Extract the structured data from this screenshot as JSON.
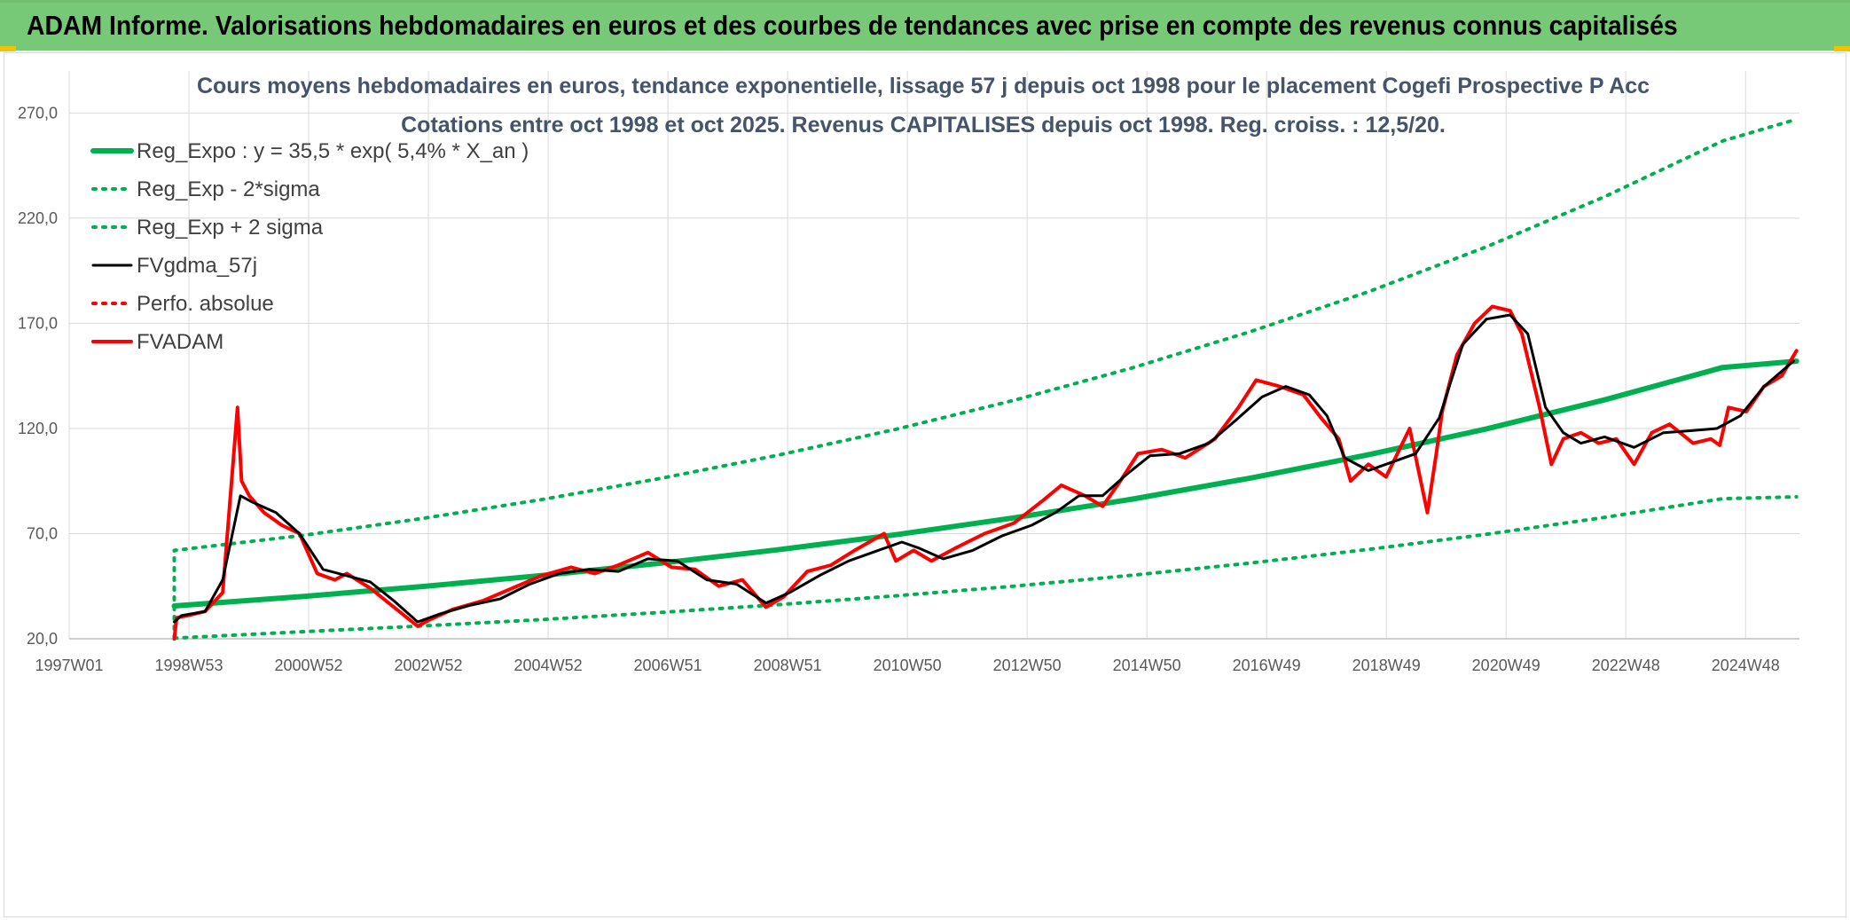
{
  "header": {
    "title": "ADAM Informe. Valorisations hebdomadaires en euros et des courbes de tendances avec prise en compte des revenus connus capitalisés"
  },
  "colors": {
    "header_bg": "#77c877",
    "reg_expo": "#00b050",
    "fvgdma": "#000000",
    "fvadam": "#ff0000",
    "grid": "#d9d9d9"
  },
  "chart_data": {
    "type": "line",
    "title": [
      "Cours moyens hebdomadaires en euros, tendance exponentielle, lissage 57 j depuis oct 1998 pour le placement Cogefi Prospective P Acc",
      "Cotations entre oct 1998 et oct 2025. Revenus CAPITALISES depuis oct 1998. Reg. croiss. : 12,5/20."
    ],
    "x_tick_labels": [
      "1997W01",
      "1998W53",
      "2000W52",
      "2002W52",
      "2004W52",
      "2006W51",
      "2008W51",
      "2010W50",
      "2012W50",
      "2014W50",
      "2016W49",
      "2018W49",
      "2020W49",
      "2022W48",
      "2024W48"
    ],
    "x_range": [
      1997.0,
      2026.3
    ],
    "ylim": [
      20,
      290
    ],
    "y_ticks": [
      20,
      70,
      120,
      170,
      220,
      270
    ],
    "y_tick_labels": [
      "20,0",
      "70,0",
      "120,0",
      "170,0",
      "220,0",
      "270,0"
    ],
    "grid": true,
    "legend_position": "top-left",
    "series": [
      {
        "name": "Reg_Expo : y = 35,5 * exp( 5,4% *  X_an )",
        "style": "solid-thick",
        "color": "#00b050",
        "x": [
          1998.78,
          2001,
          2003,
          2005,
          2007,
          2009,
          2011,
          2013,
          2015,
          2017,
          2019,
          2021,
          2023,
          2025,
          2026.25
        ],
        "y": [
          35.6,
          40.2,
          44.9,
          50.1,
          55.9,
          62.3,
          69.5,
          77.5,
          86.4,
          96.4,
          107.5,
          119.8,
          133.6,
          149.0,
          152.0
        ]
      },
      {
        "name": "Reg_Exp - 2*sigma",
        "style": "dotted",
        "color": "#00b050",
        "x": [
          1998.78,
          2001,
          2003,
          2005,
          2007,
          2009,
          2011,
          2013,
          2015,
          2017,
          2019,
          2021,
          2023,
          2025,
          2026.25
        ],
        "y": [
          20.3,
          23.4,
          26.1,
          29.1,
          32.5,
          36.2,
          40.4,
          45.0,
          50.2,
          56.0,
          62.5,
          69.7,
          77.7,
          86.6,
          87.5
        ]
      },
      {
        "name": "Reg_Exp + 2 sigma",
        "style": "dotted",
        "color": "#00b050",
        "x": [
          1998.78,
          2001,
          2003,
          2005,
          2007,
          2009,
          2011,
          2013,
          2015,
          2017,
          2019,
          2021,
          2023,
          2025,
          2026.25
        ],
        "y": [
          62.0,
          69.3,
          77.3,
          86.2,
          96.2,
          107.3,
          119.6,
          133.4,
          148.8,
          166.0,
          185.0,
          206.4,
          230.2,
          256.7,
          267.0
        ]
      },
      {
        "name": "FVgdma_57j",
        "style": "solid",
        "color": "#000000",
        "x": [
          1998.78,
          1998.9,
          1999.3,
          1999.6,
          1999.9,
          2000.1,
          2000.5,
          2000.9,
          2001.3,
          2001.7,
          2002.1,
          2002.5,
          2002.9,
          2003.3,
          2003.8,
          2004.3,
          2004.8,
          2005.3,
          2005.8,
          2006.3,
          2006.8,
          2007.3,
          2007.8,
          2008.3,
          2008.8,
          2009.2,
          2009.7,
          2010.2,
          2010.7,
          2011.1,
          2011.4,
          2011.8,
          2012.3,
          2012.8,
          2013.3,
          2013.7,
          2014.1,
          2014.5,
          2014.9,
          2015.3,
          2015.8,
          2016.3,
          2016.8,
          2017.2,
          2017.6,
          2018.0,
          2018.3,
          2018.6,
          2019.0,
          2019.4,
          2019.8,
          2020.2,
          2020.6,
          2021.0,
          2021.4,
          2021.7,
          2022.0,
          2022.3,
          2022.6,
          2023.0,
          2023.5,
          2024.0,
          2024.5,
          2024.9,
          2025.3,
          2025.7,
          2026.2
        ],
        "y": [
          28,
          31,
          33,
          48,
          88,
          85,
          80,
          70,
          53,
          50,
          47,
          38,
          28,
          32,
          36,
          39,
          46,
          51,
          53,
          52,
          58,
          57,
          48,
          46,
          37,
          42,
          50,
          57,
          62,
          66,
          63,
          58,
          62,
          69,
          74,
          80,
          88,
          88,
          98,
          107,
          108,
          113,
          125,
          135,
          140,
          136,
          126,
          106,
          100,
          104,
          108,
          125,
          160,
          172,
          174,
          165,
          130,
          118,
          113,
          116,
          111,
          118,
          119,
          120,
          126,
          140,
          152
        ]
      },
      {
        "name": "Perfo. absolue",
        "style": "dotted",
        "color": "#ff0000",
        "x": [],
        "y": []
      },
      {
        "name": "FVADAM",
        "style": "solid-thick",
        "color": "#ff0000",
        "x": [
          1998.78,
          1998.82,
          1999.0,
          1999.3,
          1999.6,
          1999.85,
          1999.92,
          2000.05,
          2000.3,
          2000.6,
          2000.9,
          2001.2,
          2001.5,
          2001.7,
          2002.1,
          2002.5,
          2002.9,
          2003.1,
          2003.5,
          2004.0,
          2004.5,
          2005.0,
          2005.5,
          2005.9,
          2006.3,
          2006.8,
          2007.2,
          2007.6,
          2008.0,
          2008.4,
          2008.8,
          2009.1,
          2009.5,
          2009.9,
          2010.3,
          2010.8,
          2011.0,
          2011.3,
          2011.6,
          2012.0,
          2012.5,
          2013.0,
          2013.5,
          2013.8,
          2014.2,
          2014.5,
          2014.8,
          2015.1,
          2015.5,
          2015.9,
          2016.4,
          2016.8,
          2017.1,
          2017.5,
          2017.9,
          2018.2,
          2018.5,
          2018.7,
          2019.0,
          2019.3,
          2019.7,
          2020.0,
          2020.15,
          2020.25,
          2020.5,
          2020.8,
          2021.1,
          2021.4,
          2021.6,
          2021.9,
          2022.1,
          2022.3,
          2022.6,
          2022.9,
          2023.2,
          2023.5,
          2023.8,
          2024.1,
          2024.5,
          2024.8,
          2024.95,
          2025.1,
          2025.4,
          2025.7,
          2026.0,
          2026.25
        ],
        "y": [
          20,
          30,
          31,
          33,
          42,
          130,
          95,
          88,
          80,
          74,
          70,
          51,
          48,
          51,
          44,
          35,
          26,
          29,
          34,
          38,
          44,
          50,
          54,
          51,
          55,
          61,
          54,
          53,
          45,
          48,
          35,
          40,
          52,
          55,
          62,
          70,
          57,
          62,
          57,
          63,
          70,
          75,
          86,
          93,
          88,
          83,
          95,
          108,
          110,
          106,
          115,
          130,
          143,
          140,
          136,
          125,
          115,
          95,
          103,
          97,
          120,
          80,
          108,
          128,
          155,
          170,
          178,
          176,
          165,
          130,
          103,
          115,
          118,
          113,
          115,
          103,
          118,
          122,
          113,
          115,
          112,
          130,
          128,
          140,
          145,
          157
        ]
      }
    ]
  }
}
